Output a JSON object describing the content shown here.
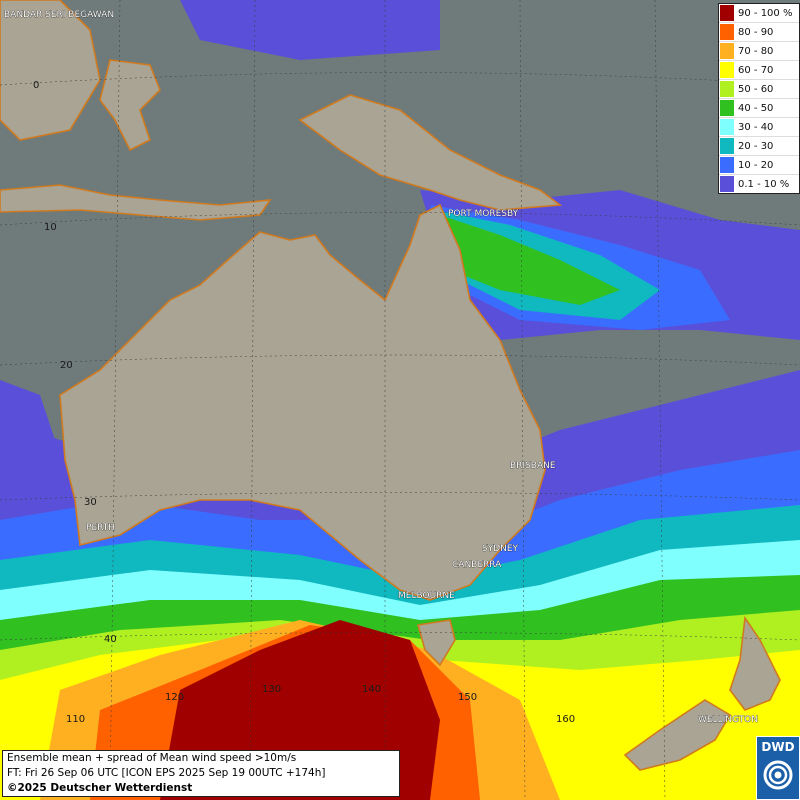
{
  "legend": [
    {
      "label": "90 - 100 %",
      "color": "#a00000"
    },
    {
      "label": "80 - 90",
      "color": "#ff6000"
    },
    {
      "label": "70 - 80",
      "color": "#ffb020"
    },
    {
      "label": "60 - 70",
      "color": "#ffff00"
    },
    {
      "label": "50 - 60",
      "color": "#b0f020"
    },
    {
      "label": "40 - 50",
      "color": "#30c020"
    },
    {
      "label": "30 - 40",
      "color": "#80ffff"
    },
    {
      "label": "20 - 30",
      "color": "#10b8c0"
    },
    {
      "label": "10 - 20",
      "color": "#3a6cff"
    },
    {
      "label": "0.1 - 10 %",
      "color": "#5a4fd8"
    }
  ],
  "cities": {
    "bandar": "BANDAR SERI BEGAWAN",
    "port_moresby": "PORT MORESBY",
    "brisbane": "BRISBANE",
    "perth": "PERTH",
    "sydney": "SYDNEY",
    "canberra": "CANBERRA",
    "melbourne": "MELBOURNE",
    "wellington": "WELLINGTON"
  },
  "coords": {
    "lat_0": "0",
    "lat_10": "10",
    "lat_20": "20",
    "lat_30": "30",
    "lat_40": "40",
    "lon_110": "110",
    "lon_120": "120",
    "lon_130": "130",
    "lon_140": "140",
    "lon_150": "150",
    "lon_160": "160"
  },
  "info": {
    "line1": "Ensemble mean + spread of Mean wind speed >10m/s",
    "line2": "FT: Fri 26 Sep 06 UTC [ICON EPS 2025 Sep 19 00UTC +174h]",
    "line3": "©2025 Deutscher Wetterdienst"
  },
  "logo": {
    "text": "DWD"
  },
  "colors": {
    "land": "#a9a493",
    "ocean": "#6f7a7a",
    "coast": "#d07a20"
  }
}
